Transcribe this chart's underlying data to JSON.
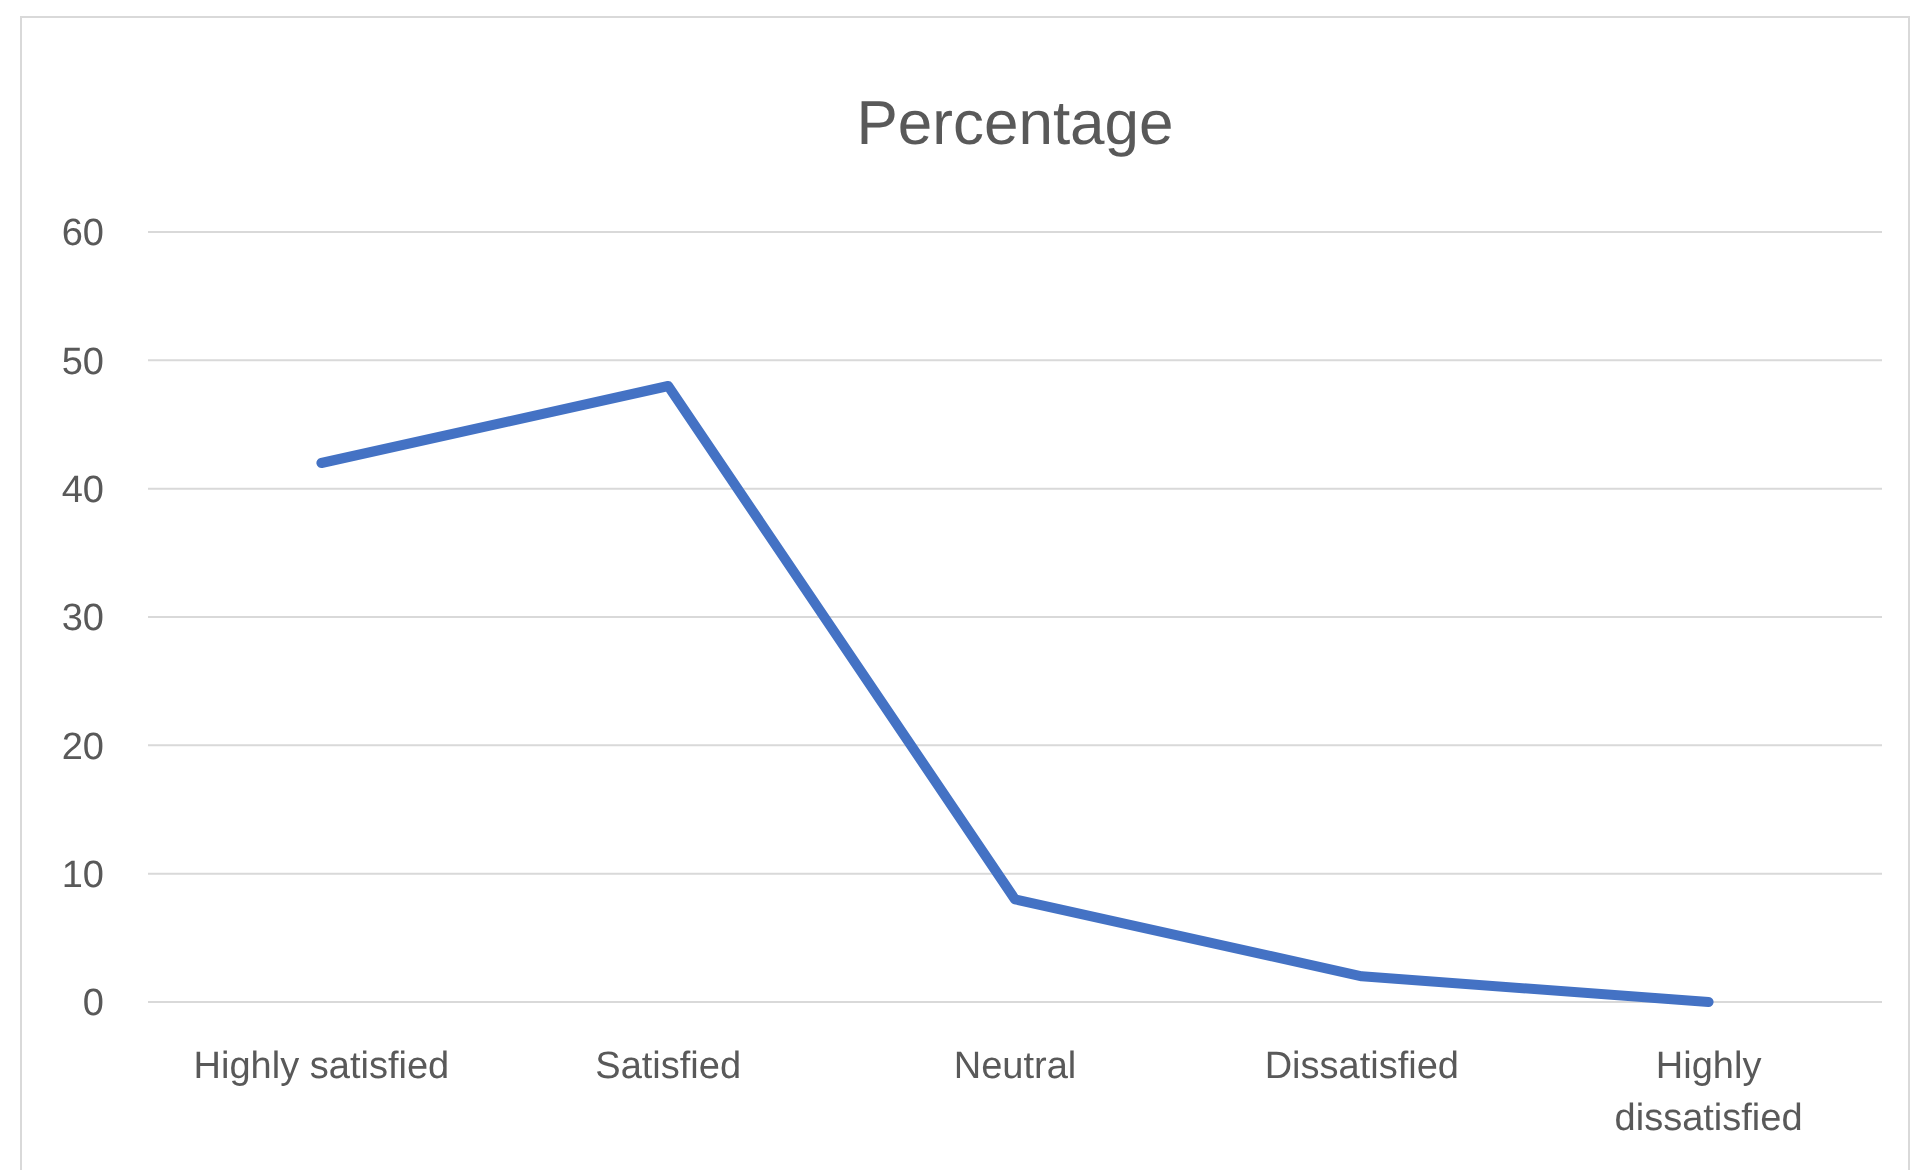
{
  "chart_data": {
    "type": "line",
    "title": "Percentage",
    "categories": [
      "Highly satisfied",
      "Satisfied",
      "Neutral",
      "Dissatisfied",
      "Highly dissatisfied"
    ],
    "series": [
      {
        "color": "#4472c4",
        "values": [
          42,
          48,
          8,
          2,
          0
        ]
      }
    ],
    "ylim": [
      0,
      60
    ],
    "yticks": [
      0,
      10,
      20,
      30,
      40,
      50,
      60
    ],
    "grid": "y",
    "marker": "none",
    "line_style": "solid"
  }
}
